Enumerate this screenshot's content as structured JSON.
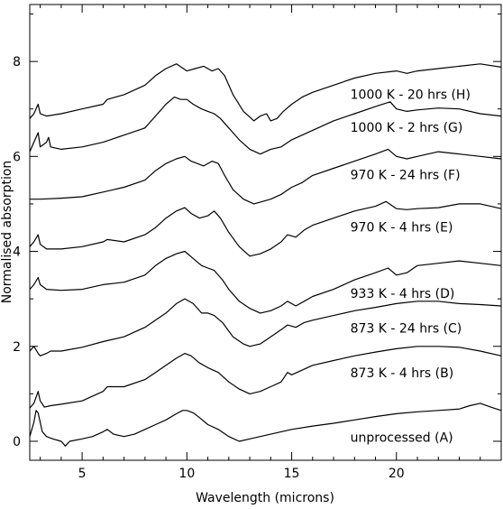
{
  "chart_data": {
    "type": "line",
    "title": "",
    "xlabel": "Wavelength (microns)",
    "ylabel": "Normalised absorption",
    "xlim": [
      2.5,
      25
    ],
    "ylim": [
      -0.4,
      9.2
    ],
    "xticks": [
      5,
      10,
      15,
      20
    ],
    "yticks": [
      0,
      2,
      4,
      6,
      8
    ],
    "grid": false,
    "colors": {
      "line": "#000000",
      "axes": "#000000",
      "background": "#ffffff"
    },
    "series": [
      {
        "name": "unprocessed (A)",
        "x": [
          2.5,
          2.7,
          2.8,
          2.9,
          3.0,
          3.1,
          3.3,
          3.6,
          4.0,
          4.2,
          4.4,
          5.0,
          5.5,
          6.0,
          6.2,
          6.5,
          7.0,
          7.5,
          8.0,
          8.5,
          9.0,
          9.5,
          9.8,
          10.0,
          10.3,
          10.6,
          11.0,
          11.5,
          12.0,
          12.5,
          13.0,
          14.0,
          15.0,
          16.0,
          17.0,
          18.0,
          19.0,
          20.0,
          21.0,
          22.0,
          23.0,
          23.5,
          24.0,
          24.5,
          25.0
        ],
        "y": [
          0.1,
          0.4,
          0.65,
          0.6,
          0.4,
          0.2,
          0.1,
          0.05,
          0.0,
          -0.1,
          0.0,
          0.05,
          0.1,
          0.2,
          0.25,
          0.15,
          0.1,
          0.15,
          0.25,
          0.35,
          0.45,
          0.58,
          0.65,
          0.65,
          0.6,
          0.5,
          0.35,
          0.25,
          0.1,
          0.0,
          0.05,
          0.15,
          0.25,
          0.32,
          0.38,
          0.45,
          0.52,
          0.58,
          0.62,
          0.65,
          0.68,
          0.75,
          0.8,
          0.72,
          0.65
        ]
      },
      {
        "name": "873 K - 4 hrs (B)",
        "x": [
          2.5,
          2.7,
          2.9,
          3.0,
          3.2,
          3.5,
          4.0,
          5.0,
          6.0,
          6.2,
          7.0,
          8.0,
          8.5,
          9.0,
          9.5,
          9.9,
          10.2,
          10.6,
          11.0,
          11.5,
          12.0,
          12.5,
          13.0,
          13.5,
          14.0,
          14.5,
          14.8,
          15.0,
          15.5,
          16.0,
          17.0,
          18.0,
          19.0,
          20.0,
          21.0,
          22.0,
          23.0,
          24.0,
          25.0
        ],
        "y": [
          0.7,
          0.8,
          1.05,
          0.85,
          0.72,
          0.75,
          0.78,
          0.85,
          1.05,
          1.15,
          1.15,
          1.3,
          1.45,
          1.6,
          1.75,
          1.85,
          1.8,
          1.65,
          1.55,
          1.45,
          1.25,
          1.1,
          1.0,
          1.05,
          1.15,
          1.25,
          1.45,
          1.4,
          1.5,
          1.6,
          1.7,
          1.8,
          1.88,
          1.95,
          2.0,
          2.0,
          1.98,
          1.9,
          1.8
        ]
      },
      {
        "name": "873 K - 24 hrs (C)",
        "x": [
          2.5,
          2.7,
          2.9,
          3.0,
          3.3,
          3.5,
          4.0,
          5.0,
          6.0,
          7.0,
          8.0,
          9.0,
          9.5,
          9.9,
          10.3,
          10.7,
          11.0,
          11.3,
          11.7,
          12.2,
          12.7,
          13.0,
          13.5,
          14.0,
          14.5,
          14.8,
          15.2,
          15.6,
          16.0,
          17.0,
          18.0,
          19.0,
          20.0,
          21.0,
          22.0,
          23.0,
          24.0,
          25.0
        ],
        "y": [
          1.9,
          2.0,
          1.85,
          1.8,
          1.85,
          1.9,
          1.9,
          1.98,
          2.1,
          2.2,
          2.4,
          2.7,
          2.9,
          3.0,
          2.9,
          2.7,
          2.7,
          2.65,
          2.5,
          2.2,
          2.05,
          2.0,
          2.05,
          2.2,
          2.35,
          2.45,
          2.4,
          2.5,
          2.55,
          2.65,
          2.75,
          2.82,
          2.9,
          2.95,
          2.95,
          2.9,
          2.88,
          2.85
        ]
      },
      {
        "name": "933 K - 4 hrs (D)",
        "x": [
          2.5,
          2.7,
          2.9,
          3.0,
          3.3,
          4.0,
          5.0,
          6.0,
          7.0,
          8.0,
          8.5,
          9.0,
          9.5,
          9.9,
          10.3,
          10.7,
          11.0,
          11.3,
          11.7,
          12.0,
          12.5,
          13.0,
          13.5,
          14.0,
          14.5,
          14.8,
          15.2,
          15.6,
          16.0,
          17.0,
          18.0,
          19.0,
          19.6,
          20.0,
          20.5,
          21.0,
          22.0,
          23.0,
          24.0,
          25.0
        ],
        "y": [
          3.2,
          3.3,
          3.45,
          3.3,
          3.2,
          3.18,
          3.2,
          3.3,
          3.35,
          3.5,
          3.7,
          3.85,
          3.95,
          4.0,
          3.85,
          3.7,
          3.65,
          3.6,
          3.4,
          3.2,
          2.95,
          2.8,
          2.7,
          2.75,
          2.85,
          2.95,
          2.85,
          2.95,
          3.05,
          3.2,
          3.4,
          3.55,
          3.65,
          3.5,
          3.55,
          3.7,
          3.75,
          3.8,
          3.75,
          3.7
        ]
      },
      {
        "name": "970 K - 4 hrs (E)",
        "x": [
          2.5,
          2.7,
          2.9,
          3.0,
          3.3,
          4.0,
          5.0,
          6.0,
          6.2,
          7.0,
          8.0,
          8.5,
          9.0,
          9.5,
          9.9,
          10.2,
          10.6,
          11.0,
          11.3,
          11.6,
          12.0,
          12.5,
          13.0,
          13.5,
          14.0,
          14.5,
          14.8,
          15.2,
          15.6,
          16.0,
          17.0,
          18.0,
          19.0,
          19.5,
          20.0,
          20.5,
          21.0,
          22.0,
          23.0,
          24.0,
          24.5,
          25.0
        ],
        "y": [
          4.1,
          4.2,
          4.35,
          4.15,
          4.05,
          4.05,
          4.1,
          4.2,
          4.25,
          4.2,
          4.35,
          4.5,
          4.7,
          4.85,
          4.92,
          4.8,
          4.7,
          4.75,
          4.85,
          4.7,
          4.4,
          4.1,
          3.9,
          3.95,
          4.05,
          4.2,
          4.35,
          4.3,
          4.45,
          4.55,
          4.7,
          4.85,
          4.95,
          5.05,
          4.9,
          4.88,
          4.9,
          4.92,
          5.0,
          5.0,
          4.95,
          4.9
        ]
      },
      {
        "name": "970 K - 24 hrs (F)",
        "x": [
          2.5,
          3.0,
          4.0,
          5.0,
          6.0,
          7.0,
          8.0,
          8.5,
          9.0,
          9.5,
          9.9,
          10.2,
          10.5,
          10.8,
          11.2,
          11.5,
          11.8,
          12.2,
          12.7,
          13.2,
          13.6,
          14.0,
          14.5,
          15.0,
          15.5,
          16.0,
          17.0,
          18.0,
          19.0,
          19.6,
          20.0,
          20.5,
          21.0,
          22.0,
          23.0,
          24.0,
          25.0
        ],
        "y": [
          5.1,
          5.1,
          5.12,
          5.15,
          5.25,
          5.35,
          5.5,
          5.7,
          5.85,
          5.95,
          6.0,
          5.9,
          5.85,
          5.8,
          5.9,
          5.85,
          5.6,
          5.3,
          5.1,
          5.0,
          5.05,
          5.1,
          5.2,
          5.35,
          5.45,
          5.6,
          5.75,
          5.9,
          6.05,
          6.15,
          6.0,
          5.95,
          6.0,
          6.1,
          6.05,
          6.0,
          5.95
        ]
      },
      {
        "name": "1000 K - 2 hrs (G)",
        "x": [
          2.5,
          2.7,
          2.9,
          3.0,
          3.3,
          3.4,
          3.5,
          4.0,
          5.0,
          6.0,
          7.0,
          8.0,
          8.5,
          9.0,
          9.4,
          9.7,
          10.0,
          10.3,
          10.7,
          11.0,
          11.3,
          11.6,
          12.0,
          12.5,
          13.0,
          13.5,
          14.0,
          14.5,
          15.0,
          15.5,
          16.0,
          17.0,
          18.0,
          19.0,
          19.7,
          20.0,
          20.5,
          21.0,
          22.0,
          23.0,
          24.0,
          25.0
        ],
        "y": [
          6.1,
          6.3,
          6.5,
          6.2,
          6.3,
          6.4,
          6.2,
          6.15,
          6.2,
          6.3,
          6.45,
          6.6,
          6.85,
          7.1,
          7.25,
          7.2,
          7.2,
          7.1,
          7.0,
          6.95,
          6.9,
          6.8,
          6.6,
          6.35,
          6.15,
          6.05,
          6.15,
          6.2,
          6.35,
          6.45,
          6.55,
          6.75,
          6.9,
          7.05,
          7.15,
          7.0,
          6.95,
          6.98,
          7.02,
          7.0,
          6.9,
          6.85
        ]
      },
      {
        "name": "1000 K - 20 hrs (H)",
        "x": [
          2.5,
          2.7,
          2.9,
          3.0,
          3.3,
          4.0,
          5.0,
          6.0,
          6.2,
          7.0,
          8.0,
          8.5,
          9.0,
          9.5,
          10.0,
          10.4,
          10.8,
          11.2,
          11.5,
          11.8,
          12.2,
          12.7,
          13.2,
          13.5,
          13.8,
          14.0,
          14.3,
          14.6,
          15.0,
          15.5,
          16.0,
          17.0,
          18.0,
          19.0,
          20.0,
          20.5,
          21.0,
          22.0,
          23.0,
          24.0,
          25.0
        ],
        "y": [
          6.8,
          6.9,
          7.1,
          6.9,
          6.85,
          6.9,
          7.0,
          7.1,
          7.2,
          7.3,
          7.5,
          7.7,
          7.85,
          7.95,
          7.8,
          7.85,
          7.9,
          7.8,
          7.85,
          7.7,
          7.3,
          6.95,
          6.75,
          6.85,
          6.9,
          6.75,
          6.8,
          6.95,
          7.1,
          7.25,
          7.35,
          7.5,
          7.65,
          7.75,
          7.8,
          7.75,
          7.8,
          7.85,
          7.9,
          7.95,
          7.88
        ]
      }
    ]
  }
}
